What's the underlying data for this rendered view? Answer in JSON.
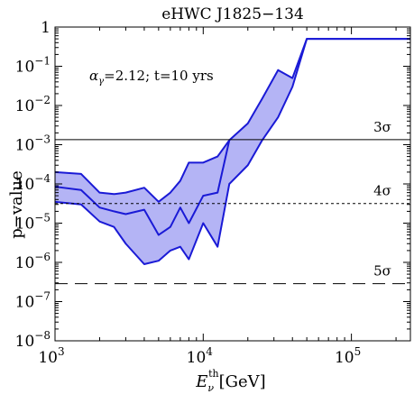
{
  "chart_data": {
    "type": "area",
    "title": "eHWC J1825−134",
    "annotation": {
      "alpha_symbol": "α",
      "alpha_sub": "γ",
      "rest": "=2.12; t=10 yrs"
    },
    "ylabel": "p−value",
    "xlabel": {
      "E": "E",
      "sub": "ν",
      "sup": "th",
      "unit": "[GeV]"
    },
    "x_scale": "log",
    "y_scale": "log",
    "xlim": [
      1000,
      250000
    ],
    "ylim": [
      1e-08,
      1
    ],
    "x_ticks": [
      {
        "value": 1000,
        "base": "10",
        "exp": "3"
      },
      {
        "value": 10000,
        "base": "10",
        "exp": "4"
      },
      {
        "value": 100000,
        "base": "10",
        "exp": "5"
      }
    ],
    "y_ticks": [
      {
        "value": 1,
        "base": "1",
        "exp": ""
      },
      {
        "value": 0.1,
        "base": "10",
        "exp": "−1"
      },
      {
        "value": 0.01,
        "base": "10",
        "exp": "−2"
      },
      {
        "value": 0.001,
        "base": "10",
        "exp": "−3"
      },
      {
        "value": 0.0001,
        "base": "10",
        "exp": "−4"
      },
      {
        "value": 1e-05,
        "base": "10",
        "exp": "−5"
      },
      {
        "value": 1e-06,
        "base": "10",
        "exp": "−6"
      },
      {
        "value": 1e-07,
        "base": "10",
        "exp": "−7"
      },
      {
        "value": 1e-08,
        "base": "10",
        "exp": "−8"
      }
    ],
    "reference_lines": [
      {
        "label": "3σ",
        "value": 0.00135,
        "style": "solid"
      },
      {
        "label": "4σ",
        "value": 3.17e-05,
        "style": "dotted"
      },
      {
        "label": "5σ",
        "value": 2.87e-07,
        "style": "dashed"
      }
    ],
    "band": {
      "fill": "#b4b4f5",
      "stroke": "#1a1ad6",
      "upper": [
        [
          1000,
          0.0002
        ],
        [
          1500,
          0.00018
        ],
        [
          2000,
          6e-05
        ],
        [
          2500,
          5.5e-05
        ],
        [
          3000,
          6e-05
        ],
        [
          4000,
          8e-05
        ],
        [
          5000,
          3.5e-05
        ],
        [
          6000,
          6e-05
        ],
        [
          7000,
          0.00012
        ],
        [
          8000,
          0.00035
        ],
        [
          10000,
          0.00035
        ],
        [
          12500,
          0.0005
        ],
        [
          15000,
          0.0013
        ],
        [
          20000,
          0.0035
        ],
        [
          25000,
          0.015
        ],
        [
          32000,
          0.08
        ],
        [
          40000,
          0.05
        ],
        [
          50000,
          0.5
        ],
        [
          63000,
          0.5
        ],
        [
          250000,
          0.5
        ]
      ],
      "lower": [
        [
          1000,
          3.5e-05
        ],
        [
          1500,
          3e-05
        ],
        [
          2000,
          1.1e-05
        ],
        [
          2500,
          8e-06
        ],
        [
          3000,
          3e-06
        ],
        [
          4000,
          9e-07
        ],
        [
          5000,
          1.1e-06
        ],
        [
          6000,
          2e-06
        ],
        [
          7000,
          2.5e-06
        ],
        [
          8000,
          1.2e-06
        ],
        [
          10000,
          1e-05
        ],
        [
          12500,
          2.5e-06
        ],
        [
          15000,
          0.0001
        ],
        [
          20000,
          0.0003
        ],
        [
          25000,
          0.0013
        ],
        [
          32000,
          0.005
        ],
        [
          40000,
          0.03
        ],
        [
          50000,
          0.5
        ],
        [
          63000,
          0.5
        ],
        [
          250000,
          0.5
        ]
      ],
      "middle": [
        [
          1000,
          8.5e-05
        ],
        [
          1500,
          7e-05
        ],
        [
          2000,
          2.5e-05
        ],
        [
          2500,
          2e-05
        ],
        [
          3000,
          1.7e-05
        ],
        [
          4000,
          2.2e-05
        ],
        [
          5000,
          5e-06
        ],
        [
          6000,
          8e-06
        ],
        [
          7000,
          2.5e-05
        ],
        [
          8000,
          1e-05
        ],
        [
          10000,
          5e-05
        ],
        [
          12500,
          6e-05
        ],
        [
          15000,
          0.0013
        ]
      ]
    }
  }
}
